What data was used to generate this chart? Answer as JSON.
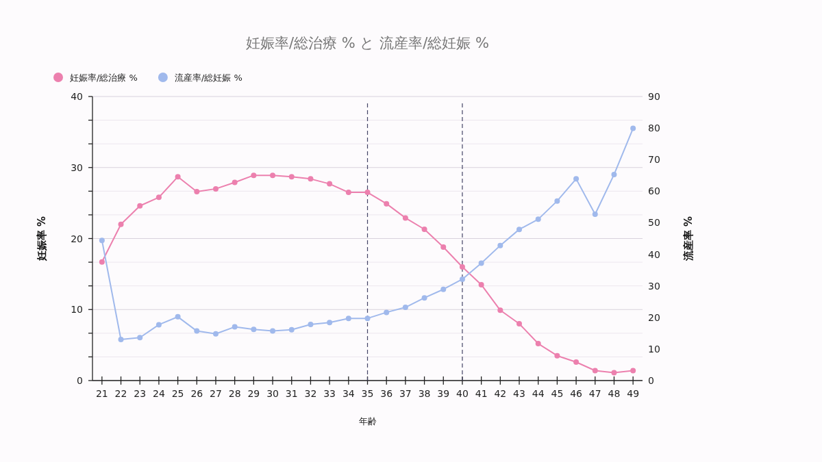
{
  "chart_data": {
    "type": "line",
    "title": "妊娠率/総治療 % と 流産率/総妊娠 %",
    "xlabel": "年齢",
    "ylabel": "妊娠率 %",
    "y2label": "流産率 %",
    "x": [
      21,
      22,
      23,
      24,
      25,
      26,
      27,
      28,
      29,
      30,
      31,
      32,
      33,
      34,
      35,
      36,
      37,
      38,
      39,
      40,
      41,
      42,
      43,
      44,
      45,
      46,
      47,
      48,
      49
    ],
    "xlim": [
      20.5,
      49.5
    ],
    "xticks": [
      21,
      22,
      23,
      24,
      25,
      26,
      27,
      28,
      29,
      30,
      31,
      32,
      33,
      34,
      35,
      36,
      37,
      38,
      39,
      40,
      41,
      42,
      43,
      44,
      45,
      46,
      47,
      48,
      49
    ],
    "ylim": [
      0,
      40
    ],
    "yticks": [
      0,
      {
        "value": 3.333,
        "label": null
      },
      {
        "value": 6.667,
        "label": null
      },
      10,
      {
        "value": 13.333,
        "label": null
      },
      {
        "value": 16.667,
        "label": null
      },
      20,
      {
        "value": 23.333,
        "label": null
      },
      {
        "value": 26.667,
        "label": null
      },
      30,
      {
        "value": 33.333,
        "label": null
      },
      {
        "value": 36.667,
        "label": null
      },
      40
    ],
    "y2lim": [
      0,
      90
    ],
    "y2ticks": [
      0,
      10,
      20,
      30,
      40,
      50,
      60,
      70,
      80,
      90
    ],
    "grid": "y",
    "legend": "top left",
    "marker": "circle",
    "line_style": "solid",
    "series": [
      {
        "name": "妊娠率/総治療 %",
        "color": "#ec80ae",
        "values": [
          16.7,
          22.0,
          24.6,
          25.8,
          28.7,
          26.6,
          27.0,
          27.9,
          28.9,
          28.9,
          28.7,
          28.4,
          27.7,
          26.5,
          26.5,
          24.9,
          22.9,
          21.3,
          18.8,
          16.0,
          13.5,
          9.9,
          8.0,
          5.2,
          3.5,
          2.6,
          1.4,
          1.1,
          1.4
        ]
      },
      {
        "name": "流産率/総妊娠 %",
        "color": "#a0b9ec",
        "axis": "y2",
        "values": [
          44.4,
          13.0,
          13.6,
          17.7,
          20.2,
          15.7,
          14.8,
          17.0,
          16.2,
          15.7,
          16.1,
          17.8,
          18.4,
          19.7,
          19.7,
          21.6,
          23.2,
          26.2,
          28.9,
          32.1,
          37.2,
          42.8,
          47.9,
          51.1,
          56.9,
          63.9,
          52.7,
          65.3,
          79.9
        ]
      }
    ],
    "ref_lines": [
      {
        "axis": "x",
        "value": 35,
        "color": "#444466",
        "line_style": "dashed"
      },
      {
        "axis": "x",
        "value": 40,
        "color": "#444466",
        "line_style": "dashed"
      }
    ]
  }
}
